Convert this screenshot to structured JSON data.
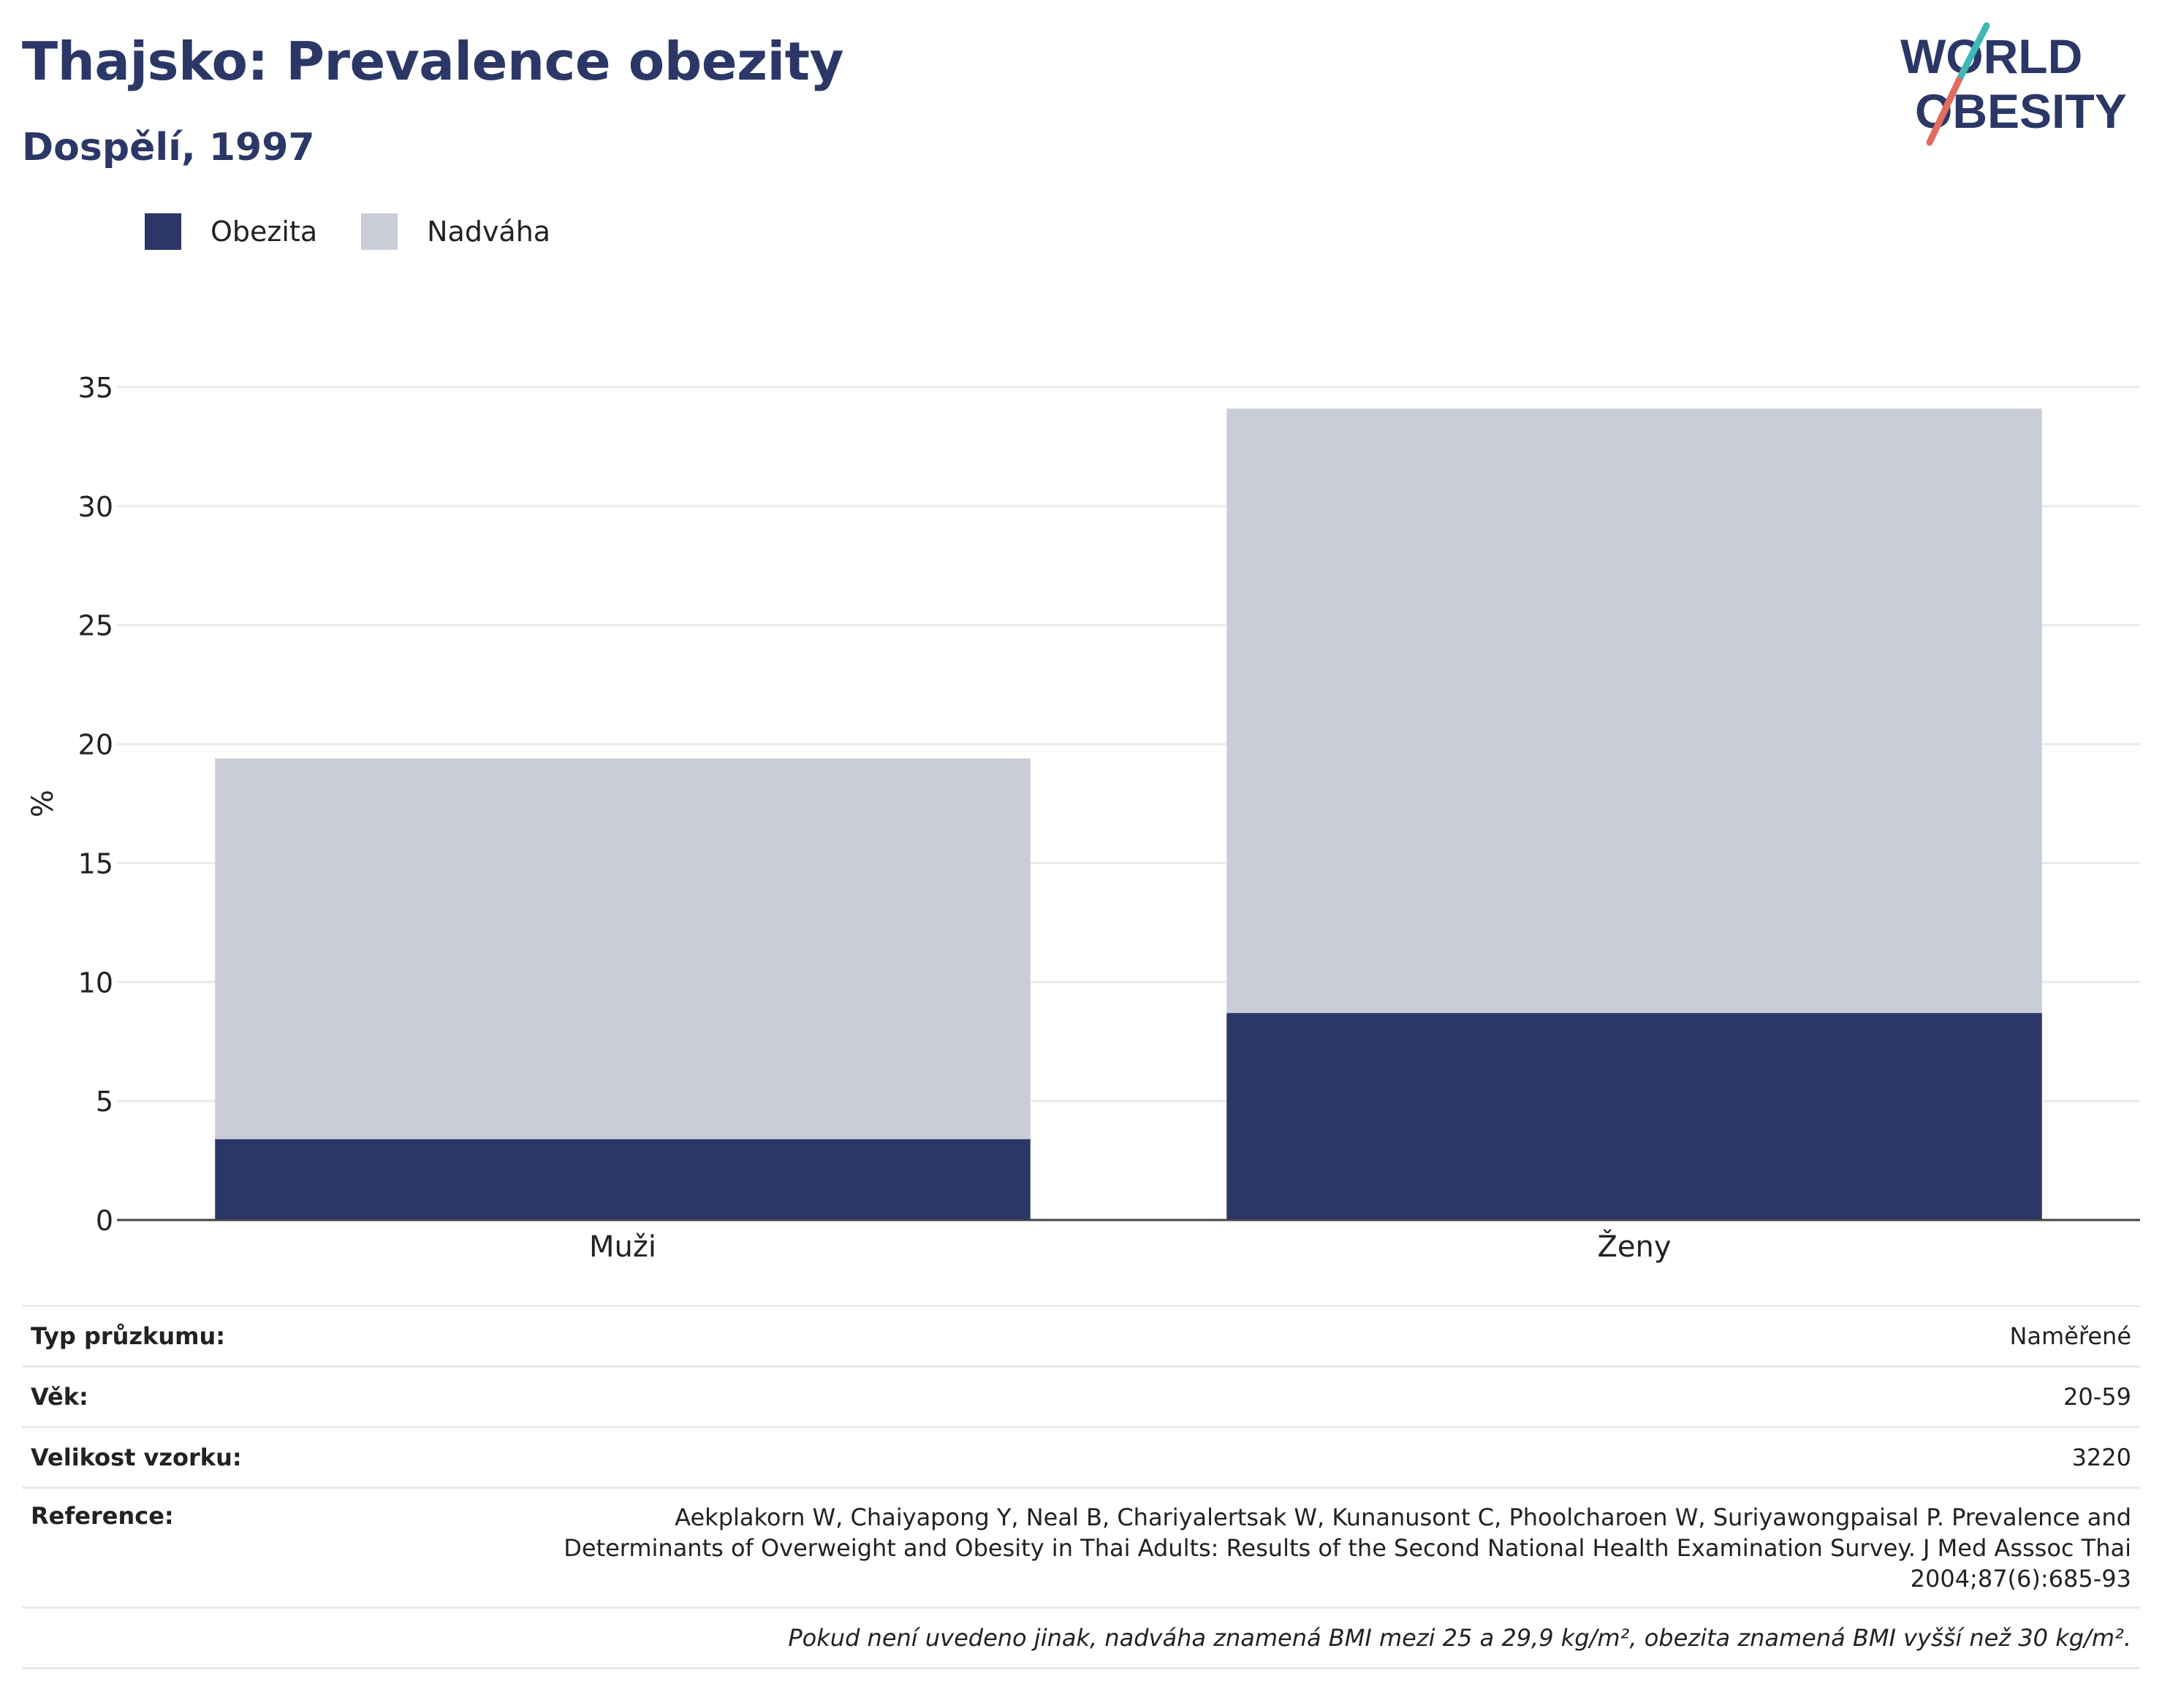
{
  "header": {
    "title": "Thajsko: Prevalence obezity",
    "subtitle": "Dospělí, 1997"
  },
  "logo": {
    "line1": "WORLD",
    "line2": "OBESITY",
    "colors": {
      "text": "#2b3766",
      "slash_teal": "#3fb8b4",
      "slash_red": "#e06b5f"
    }
  },
  "legend": {
    "items": [
      {
        "label": "Obezita",
        "color": "#2b3766"
      },
      {
        "label": "Nadváha",
        "color": "#cacdd8"
      }
    ]
  },
  "chart_data": {
    "type": "bar",
    "stacked": true,
    "categories": [
      "Muži",
      "Ženy"
    ],
    "series": [
      {
        "name": "Obezita",
        "color": "#2b3766",
        "values": [
          3.4,
          8.7
        ]
      },
      {
        "name": "Nadváha",
        "color": "#cacdd8",
        "values": [
          16.0,
          25.4
        ]
      }
    ],
    "title": "Thajsko: Prevalence obezity",
    "subtitle": "Dospělí, 1997",
    "xlabel": "",
    "ylabel": "%",
    "ylim": [
      0,
      35
    ],
    "yticks": [
      0,
      5,
      10,
      15,
      20,
      25,
      30,
      35
    ],
    "grid": true,
    "legend_position": "top-left"
  },
  "info": {
    "survey_type_label": "Typ průzkumu:",
    "survey_type_value": "Naměřené",
    "age_label": "Věk:",
    "age_value": "20-59",
    "sample_label": "Velikost vzorku:",
    "sample_value": "3220",
    "reference_label": "Reference:",
    "reference_value": "Aekplakorn W, Chaiyapong Y, Neal B, Chariyalertsak W, Kunanusont C, Phoolcharoen W, Suriyawongpaisal P. Prevalence and Determinants of Overweight and Obesity in Thai Adults: Results of the Second National Health Examination Survey. J Med Asssoc Thai 2004;87(6):685-93",
    "note": "Pokud není uvedeno jinak, nadváha znamená BMI mezi 25 a 29,9 kg/m², obezita znamená BMI vyšší než 30 kg/m²."
  }
}
